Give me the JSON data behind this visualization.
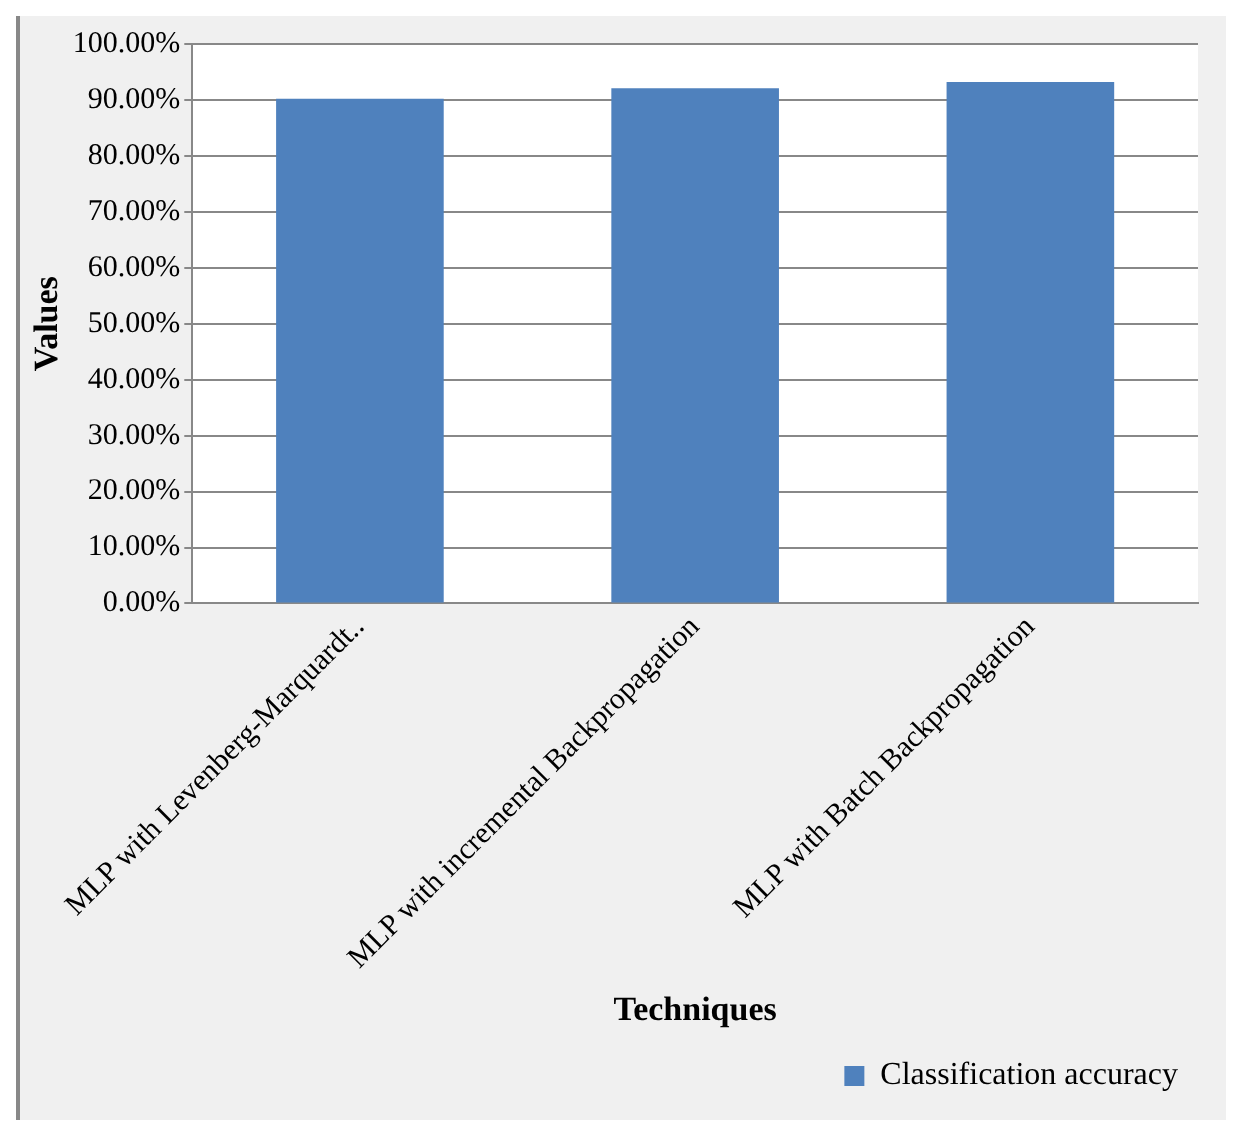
{
  "chart_data": {
    "type": "bar",
    "xlabel": "Techniques",
    "ylabel": "Values",
    "categories": [
      "MLP with Levenberg-Marquardt..",
      "MLP with incremental Backpropagation",
      "MLP with Batch Backpropagation"
    ],
    "series": [
      {
        "name": "Classification accuracy",
        "color": "#4f81bd",
        "values": [
          90.2,
          92.1,
          93.2
        ]
      }
    ],
    "ylim": [
      0,
      100
    ],
    "yticks": [
      {
        "value": 0,
        "label": "0.00%"
      },
      {
        "value": 10,
        "label": "10.00%"
      },
      {
        "value": 20,
        "label": "20.00%"
      },
      {
        "value": 30,
        "label": "30.00%"
      },
      {
        "value": 40,
        "label": "40.00%"
      },
      {
        "value": 50,
        "label": "50.00%"
      },
      {
        "value": 60,
        "label": "60.00%"
      },
      {
        "value": 70,
        "label": "70.00%"
      },
      {
        "value": 80,
        "label": "80.00%"
      },
      {
        "value": 90,
        "label": "90.00%"
      },
      {
        "value": 100,
        "label": "100.00%"
      }
    ],
    "grid": "y",
    "legend": "bottom right"
  }
}
